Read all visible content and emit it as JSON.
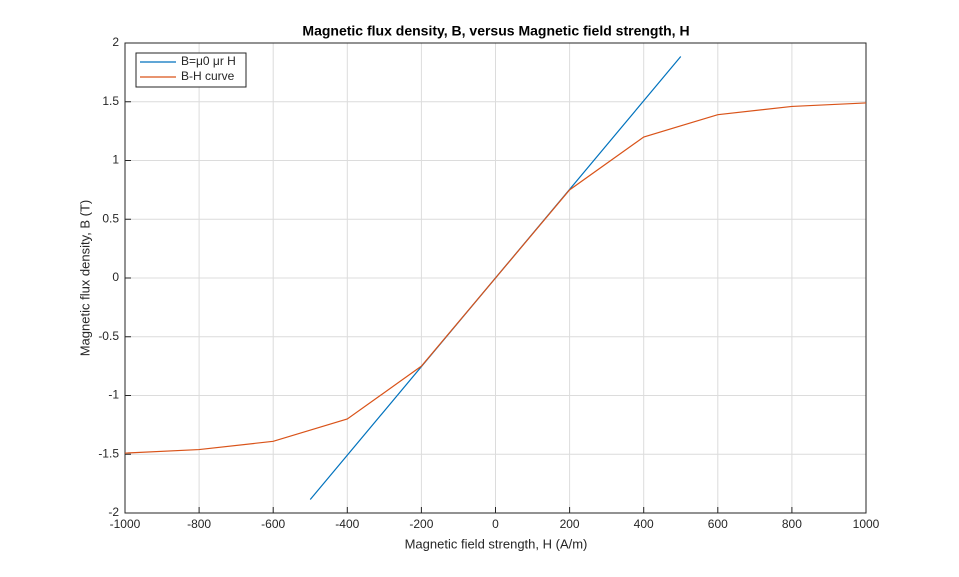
{
  "chart_data": {
    "type": "line",
    "title": "Magnetic flux density, B, versus Magnetic field strength, H",
    "x_label": "Magnetic field strength, H (A/m)",
    "y_label": "Magnetic flux density, B (T)",
    "xlim": [
      -1000,
      1000
    ],
    "ylim": [
      -2,
      2
    ],
    "xticks": [
      -1000,
      -800,
      -600,
      -400,
      -200,
      0,
      200,
      400,
      600,
      800,
      1000
    ],
    "yticks": [
      -2,
      -1.5,
      -1,
      -0.5,
      0,
      0.5,
      1,
      1.5,
      2
    ],
    "grid": true,
    "legend": "upper-left",
    "series": [
      {
        "name": "B=μ0 μr H",
        "color": "#0072bd",
        "x": [
          -500,
          500
        ],
        "values": [
          -1.885,
          1.885
        ]
      },
      {
        "name": "B-H curve",
        "color": "#d95319",
        "x": [
          -1000,
          -800,
          -600,
          -400,
          -200,
          0,
          200,
          400,
          600,
          800,
          1000
        ],
        "values": [
          -1.49,
          -1.46,
          -1.39,
          -1.2,
          -0.75,
          0,
          0.75,
          1.2,
          1.39,
          1.46,
          1.49
        ]
      }
    ]
  }
}
